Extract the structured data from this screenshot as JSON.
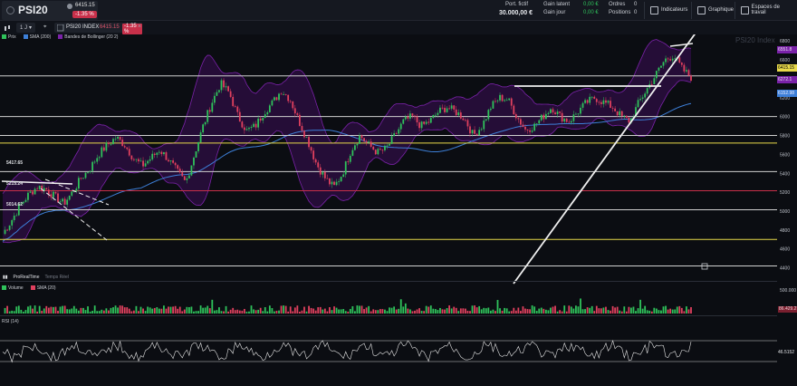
{
  "header": {
    "symbol": "PSI20",
    "price": "6415.15",
    "change": "-1.35 %",
    "account": {
      "portfolio_label": "Port. fictif",
      "portfolio_value": "30.000,00 €",
      "unrealized_label": "Gain latent",
      "unrealized_value": "0,00 €",
      "daily_label": "Gain jour",
      "daily_value": "0,00 €",
      "orders_label": "Ordres",
      "orders_value": "0",
      "positions_label": "Positions",
      "positions_value": "0"
    },
    "buttons": {
      "indicators": "Indicateurs",
      "chart": "Graphique",
      "workspaces": "Espaces de travail"
    }
  },
  "toolbar": {
    "interval": "1 J",
    "instrument_name": "PSI20 INDEX",
    "instrument_price": "6415.15",
    "instrument_change": "-1.35 %",
    "close_glyph": "×"
  },
  "legend": {
    "price": "Prix",
    "sma": "SMA (200)",
    "bollinger": "Bandes de Bollinger (20 2)"
  },
  "watermark": "PSI20 Index",
  "price_axis": {
    "ticks": [
      "6800",
      "6600",
      "6400",
      "6200",
      "6000",
      "5800",
      "5600",
      "5400",
      "5200",
      "5000",
      "4800",
      "4600",
      "4400"
    ],
    "tags": {
      "upper_band": "6551.8",
      "last_price": "6415.15",
      "lower_band": "6272.1",
      "sma": "6152.98"
    }
  },
  "levels": {
    "labels": [
      "5417.65",
      "5215.24",
      "5014.62"
    ]
  },
  "volume_pane": {
    "title": "Volume",
    "sma": "SMA (20)",
    "tick": "500.000",
    "last": "86.429.27"
  },
  "rsi_pane": {
    "title": "RSI (14)",
    "value": "46.5152"
  },
  "brand": {
    "name": "ProRealTime",
    "realtime": "Temps Réel"
  },
  "colors": {
    "up": "#2fc25b",
    "down": "#e0405e",
    "bollinger": "#7a22a8",
    "sma": "#3d7fd8",
    "level_yellow": "#e8d94a",
    "level_red": "#c8304a",
    "level_white": "#d0d0d0"
  },
  "chart_data": {
    "type": "candlestick",
    "series": [
      {
        "name": "Prix"
      },
      {
        "name": "SMA (200)"
      },
      {
        "name": "Bandes de Bollinger (20 2)"
      }
    ],
    "ylim": [
      4300,
      6850
    ],
    "horizontal_levels": [
      5417.65,
      5215.24,
      5014.62,
      6000,
      4700,
      5800,
      5720
    ],
    "price_path": [
      4760,
      4900,
      5060,
      5180,
      5260,
      5230,
      5150,
      5080,
      5200,
      5350,
      5450,
      5600,
      5700,
      5780,
      5700,
      5560,
      5480,
      5560,
      5650,
      5550,
      5420,
      5300,
      5600,
      5900,
      6150,
      6350,
      6250,
      6000,
      5850,
      5900,
      6050,
      6150,
      6280,
      6180,
      5950,
      5750,
      5500,
      5350,
      5250,
      5400,
      5650,
      5800,
      5700,
      5620,
      5660,
      5800,
      5950,
      6000,
      5900,
      5950,
      6050,
      6100,
      6050,
      5980,
      5800,
      5900,
      6100,
      6200,
      6180,
      6000,
      5860,
      5900,
      6000,
      6100,
      6000,
      5950,
      6050,
      6150,
      6200,
      6150,
      6100,
      6000,
      5950,
      6150,
      6300,
      6450,
      6600,
      6650,
      6500,
      6415
    ]
  }
}
